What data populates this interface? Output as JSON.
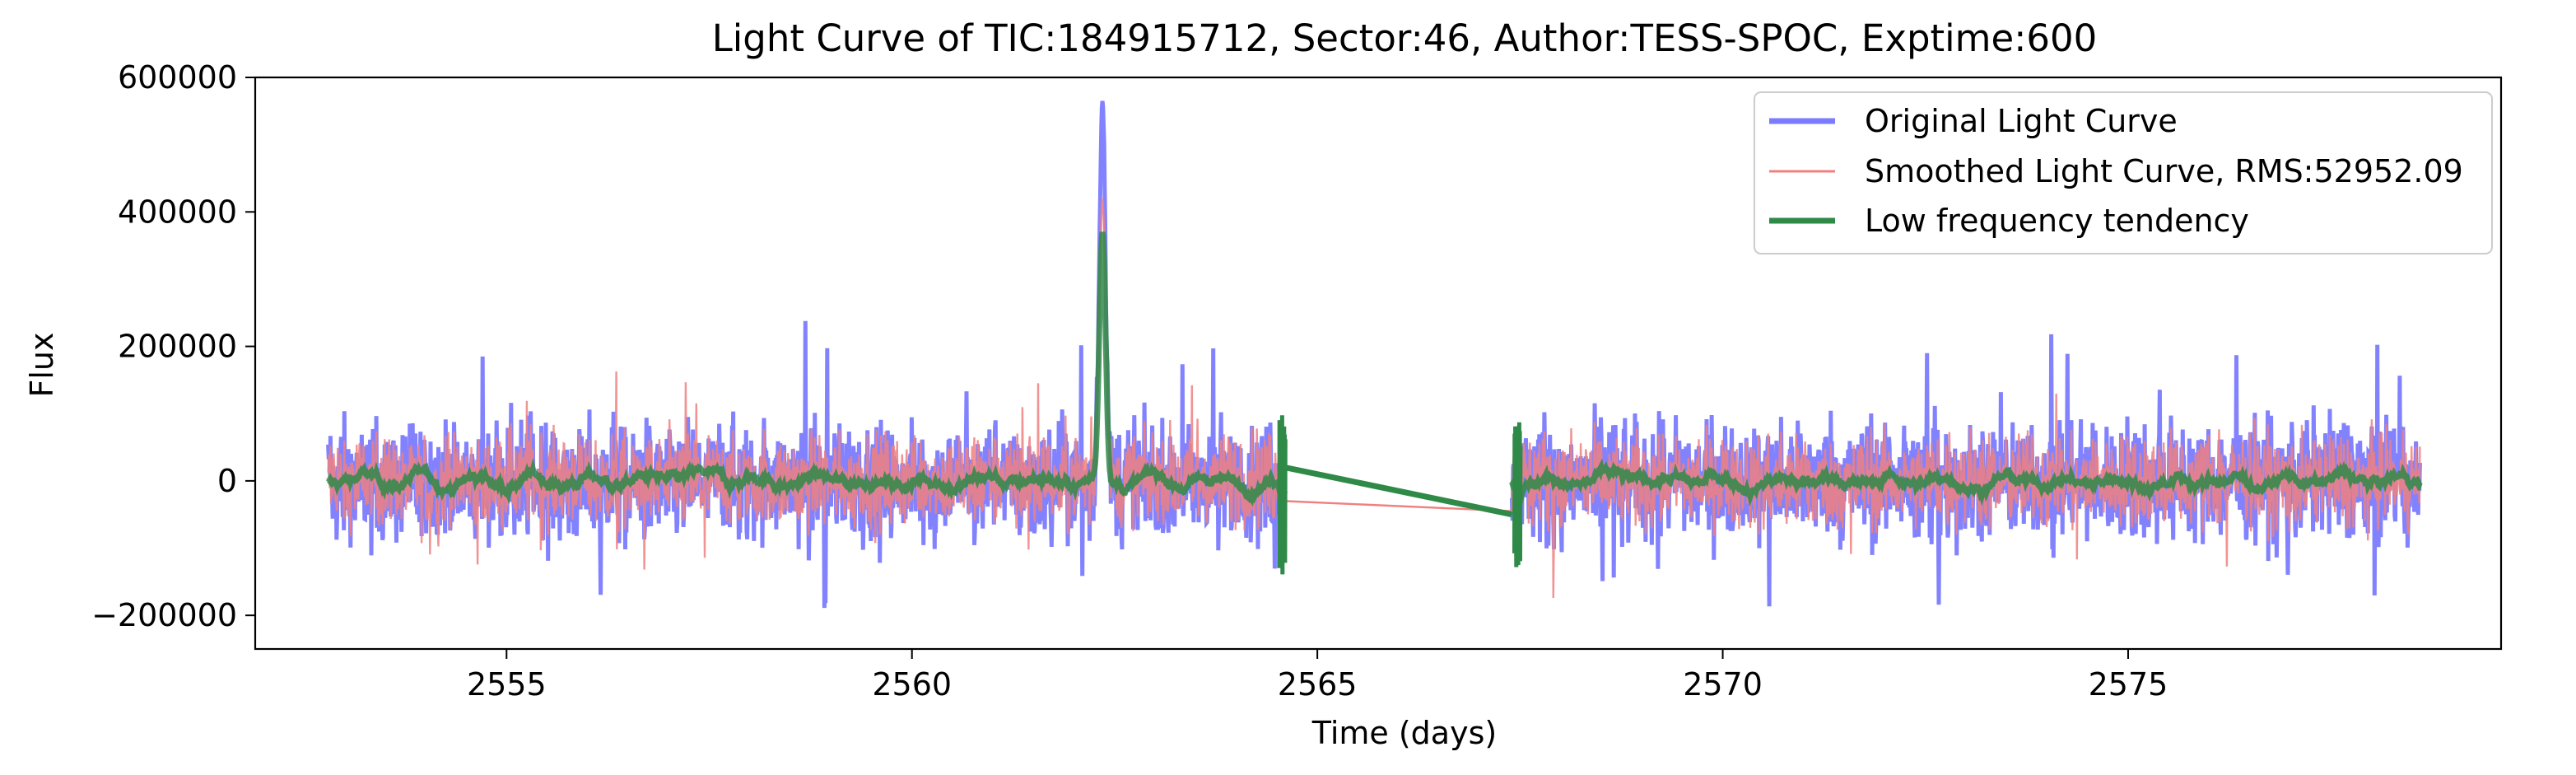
{
  "chart_data": {
    "type": "line",
    "title": "Light Curve of TIC:184915712, Sector:46, Author:TESS-SPOC, Exptime:600",
    "xlabel": "Time (days)",
    "ylabel": "Flux",
    "xlim": [
      2551.9,
      2579.6
    ],
    "ylim": [
      -250000,
      600000
    ],
    "xticks": [
      2555,
      2560,
      2565,
      2570,
      2575
    ],
    "xtick_labels": [
      "2555",
      "2560",
      "2565",
      "2570",
      "2575"
    ],
    "yticks": [
      -200000,
      0,
      200000,
      400000,
      600000
    ],
    "ytick_labels": [
      "−200000",
      "0",
      "200000",
      "400000",
      "600000"
    ],
    "grid": false,
    "legend_position": "top-right",
    "segments": [
      [
        2552.8,
        2564.6
      ],
      [
        2567.4,
        2578.6
      ]
    ],
    "gap": [
      2564.6,
      2567.4
    ],
    "spike": {
      "center": 2562.35,
      "original_peak": 565000,
      "smoothed_peak": 420000,
      "tendency_peak": 370000
    },
    "series": [
      {
        "name": "Original Light Curve",
        "color": "#7b7bff",
        "noise_amplitude": 55000,
        "spike_min": -200000
      },
      {
        "name": "Smoothed Light Curve, RMS:52952.09",
        "color": "#f08080",
        "noise_amplitude": 45000
      },
      {
        "name": "Low frequency tendency",
        "color": "#2f8a48",
        "noise_amplitude": 15000,
        "gap_start": 20000,
        "gap_end": -50000
      }
    ]
  }
}
